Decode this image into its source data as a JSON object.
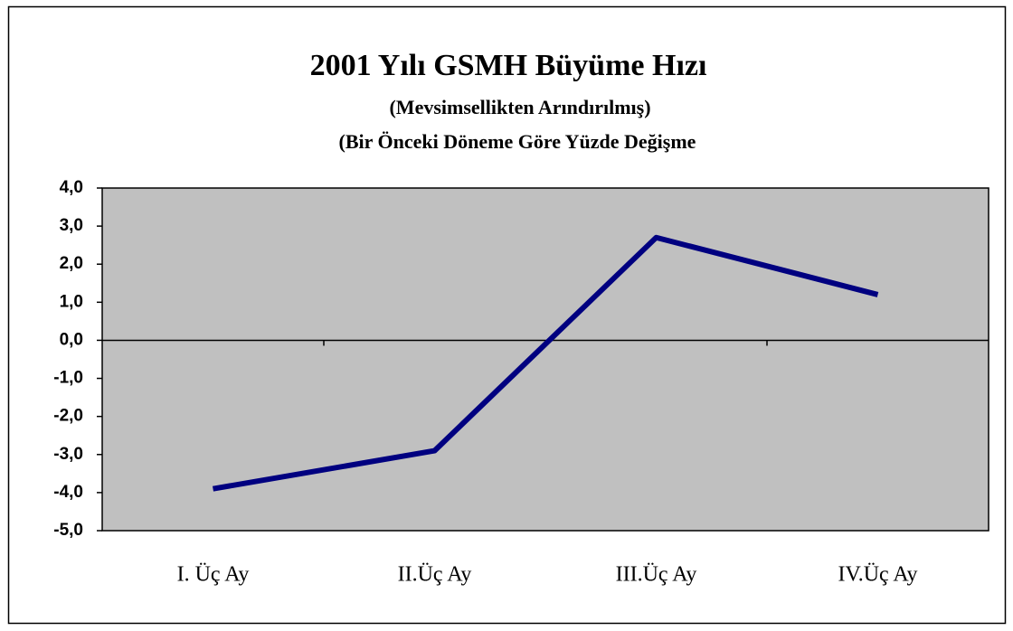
{
  "chart_data": {
    "type": "line",
    "title": "2001 Yılı GSMH Büyüme Hızı",
    "subtitle": [
      "(Mevsimsellikten Arındırılmış)",
      "(Bir Önceki Döneme Göre Yüzde Değişme"
    ],
    "categories": [
      "I. Üç Ay",
      "II.Üç Ay",
      "III.Üç Ay",
      "IV.Üç Ay"
    ],
    "values": [
      -3.9,
      -2.9,
      2.7,
      1.2
    ],
    "color": "#000080",
    "plot_background": "#c0c0c0",
    "ylim": [
      -5,
      4
    ],
    "yticks": [
      {
        "value": 4,
        "label": "4,0"
      },
      {
        "value": 3,
        "label": "3,0"
      },
      {
        "value": 2,
        "label": "2,0"
      },
      {
        "value": 1,
        "label": "1,0"
      },
      {
        "value": 0,
        "label": "0,0"
      },
      {
        "value": -1,
        "label": "-1,0"
      },
      {
        "value": -2,
        "label": "-2,0"
      },
      {
        "value": -3,
        "label": "-3,0"
      },
      {
        "value": -4,
        "label": "-4,0"
      },
      {
        "value": -5,
        "label": "-5,0"
      }
    ],
    "grid": false
  }
}
